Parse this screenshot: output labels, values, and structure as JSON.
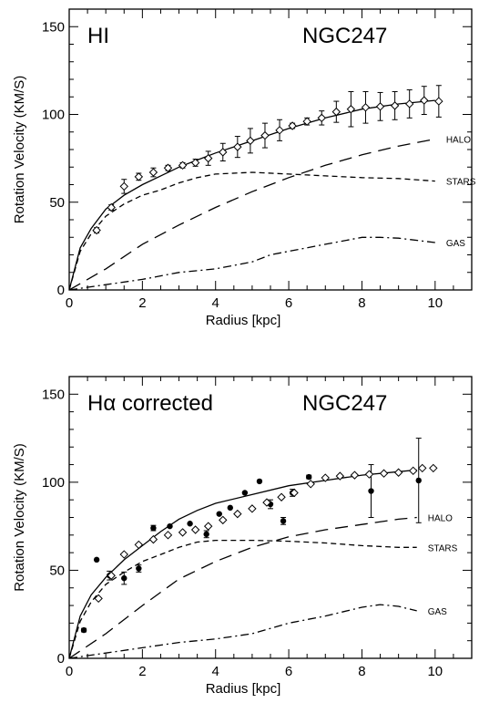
{
  "chart_data": [
    {
      "type": "scatter",
      "panel_label": "HI",
      "galaxy": "NGC247",
      "xlabel": "Radius [kpc]",
      "ylabel": "Rotation Velocity (KM/S)",
      "xlim": [
        0,
        11
      ],
      "ylim": [
        0,
        160
      ],
      "xticks": [
        0,
        2,
        4,
        6,
        8,
        10
      ],
      "yticks": [
        0,
        50,
        100,
        150
      ],
      "x_tick_labels": [
        "0",
        "2",
        "4",
        "6",
        "8",
        "10"
      ],
      "y_tick_labels": [
        "0",
        "50",
        "100",
        "150"
      ],
      "series": [
        {
          "marker": "open-diamond",
          "points": [
            {
              "x": 0.75,
              "y": 34,
              "err": 1.5
            },
            {
              "x": 1.15,
              "y": 47,
              "err": 1.5
            },
            {
              "x": 1.5,
              "y": 59,
              "err": 4
            },
            {
              "x": 1.9,
              "y": 64.5,
              "err": 2
            },
            {
              "x": 2.3,
              "y": 67,
              "err": 2.5
            },
            {
              "x": 2.7,
              "y": 69.5,
              "err": 1.5
            },
            {
              "x": 3.1,
              "y": 71,
              "err": 1.5
            },
            {
              "x": 3.45,
              "y": 72.5,
              "err": 2
            },
            {
              "x": 3.8,
              "y": 75,
              "err": 4
            },
            {
              "x": 4.2,
              "y": 78.5,
              "err": 5
            },
            {
              "x": 4.6,
              "y": 81.5,
              "err": 6
            },
            {
              "x": 4.95,
              "y": 85,
              "err": 7
            },
            {
              "x": 5.35,
              "y": 88,
              "err": 7
            },
            {
              "x": 5.75,
              "y": 91,
              "err": 6
            },
            {
              "x": 6.1,
              "y": 93.5,
              "err": 1.5
            },
            {
              "x": 6.5,
              "y": 96,
              "err": 2
            },
            {
              "x": 6.9,
              "y": 98,
              "err": 4
            },
            {
              "x": 7.3,
              "y": 101.5,
              "err": 6
            },
            {
              "x": 7.7,
              "y": 103,
              "err": 10
            },
            {
              "x": 8.1,
              "y": 104,
              "err": 9
            },
            {
              "x": 8.5,
              "y": 104.5,
              "err": 8
            },
            {
              "x": 8.9,
              "y": 105,
              "err": 8
            },
            {
              "x": 9.3,
              "y": 106,
              "err": 8
            },
            {
              "x": 9.7,
              "y": 108,
              "err": 8
            },
            {
              "x": 10.1,
              "y": 107.5,
              "err": 9
            }
          ]
        }
      ],
      "model_curves": [
        {
          "label": "",
          "style": "solid",
          "x": [
            0,
            0.3,
            0.6,
            1.0,
            1.5,
            2.0,
            2.5,
            3.0,
            3.5,
            4.0,
            5.0,
            6.0,
            7.0,
            8.0,
            9.0,
            10.0
          ],
          "y": [
            0,
            24,
            35,
            46,
            54,
            60,
            65,
            70,
            74,
            78,
            85,
            92,
            98,
            103,
            106,
            108
          ]
        },
        {
          "label": "STARS",
          "style": "short-dash",
          "x": [
            0,
            0.3,
            0.6,
            1.0,
            1.5,
            2.0,
            2.5,
            3.0,
            3.5,
            4.0,
            5.0,
            6.0,
            7.0,
            8.0,
            9.0,
            10.0
          ],
          "y": [
            0,
            22,
            32,
            42,
            49,
            54,
            57,
            61,
            64,
            66,
            67,
            66,
            65,
            64,
            63.5,
            62
          ]
        },
        {
          "label": "HALO",
          "style": "long-dash",
          "x": [
            0,
            1,
            2,
            3,
            4,
            5,
            6,
            7,
            8,
            9,
            10
          ],
          "y": [
            0,
            12,
            26,
            37,
            47,
            56,
            64,
            71,
            77,
            82,
            86
          ]
        },
        {
          "label": "GAS",
          "style": "dash-dot",
          "x": [
            0,
            1,
            2,
            3,
            4,
            5,
            5.5,
            6,
            7,
            8,
            8.5,
            9,
            10
          ],
          "y": [
            0,
            3,
            6,
            10,
            12,
            16,
            20,
            22,
            26,
            30,
            30,
            29.5,
            27
          ]
        }
      ],
      "curve_label_positions": {
        "HALO": "right",
        "STARS": "right",
        "GAS": "right"
      }
    },
    {
      "type": "scatter",
      "panel_label": "Hα corrected",
      "galaxy": "NGC247",
      "xlabel": "Radius [kpc]",
      "ylabel": "Rotation Velocity (KM/S)",
      "xlim": [
        0,
        11
      ],
      "ylim": [
        0,
        160
      ],
      "xticks": [
        0,
        2,
        4,
        6,
        8,
        10
      ],
      "yticks": [
        0,
        50,
        100,
        150
      ],
      "x_tick_labels": [
        "0",
        "2",
        "4",
        "6",
        "8",
        "10"
      ],
      "y_tick_labels": [
        "0",
        "50",
        "100",
        "150"
      ],
      "series": [
        {
          "marker": "filled-circle",
          "points": [
            {
              "x": 0.4,
              "y": 16,
              "err": 1
            },
            {
              "x": 0.75,
              "y": 56,
              "err": 0
            },
            {
              "x": 1.1,
              "y": 47,
              "err": 2.5
            },
            {
              "x": 1.5,
              "y": 45.5,
              "err": 3.5
            },
            {
              "x": 1.9,
              "y": 51,
              "err": 2
            },
            {
              "x": 2.3,
              "y": 74,
              "err": 1.5
            },
            {
              "x": 2.75,
              "y": 75,
              "err": 0
            },
            {
              "x": 3.3,
              "y": 76.5,
              "err": 0
            },
            {
              "x": 3.75,
              "y": 70.5,
              "err": 2
            },
            {
              "x": 4.1,
              "y": 82,
              "err": 0
            },
            {
              "x": 4.4,
              "y": 85.5,
              "err": 0
            },
            {
              "x": 4.8,
              "y": 94,
              "err": 0
            },
            {
              "x": 5.2,
              "y": 100.5,
              "err": 0
            },
            {
              "x": 5.5,
              "y": 87.5,
              "err": 2.5
            },
            {
              "x": 5.85,
              "y": 78,
              "err": 2
            },
            {
              "x": 6.1,
              "y": 94,
              "err": 2
            },
            {
              "x": 6.55,
              "y": 103,
              "err": 1
            },
            {
              "x": 8.25,
              "y": 95,
              "err": 15
            },
            {
              "x": 9.55,
              "y": 101,
              "err": 24
            }
          ]
        },
        {
          "marker": "open-diamond",
          "points": [
            {
              "x": 0.8,
              "y": 34
            },
            {
              "x": 1.15,
              "y": 47
            },
            {
              "x": 1.5,
              "y": 59
            },
            {
              "x": 1.9,
              "y": 64.5
            },
            {
              "x": 2.3,
              "y": 67.5
            },
            {
              "x": 2.7,
              "y": 70
            },
            {
              "x": 3.1,
              "y": 71.5
            },
            {
              "x": 3.45,
              "y": 73
            },
            {
              "x": 3.8,
              "y": 75
            },
            {
              "x": 4.2,
              "y": 78.5
            },
            {
              "x": 4.6,
              "y": 82
            },
            {
              "x": 5.0,
              "y": 85
            },
            {
              "x": 5.4,
              "y": 88.5
            },
            {
              "x": 5.8,
              "y": 91.5
            },
            {
              "x": 6.15,
              "y": 94
            },
            {
              "x": 6.6,
              "y": 99
            },
            {
              "x": 7.0,
              "y": 102.5
            },
            {
              "x": 7.4,
              "y": 103.5
            },
            {
              "x": 7.8,
              "y": 104
            },
            {
              "x": 8.2,
              "y": 104.5
            },
            {
              "x": 8.6,
              "y": 105
            },
            {
              "x": 9.0,
              "y": 105.5
            },
            {
              "x": 9.4,
              "y": 106.5
            },
            {
              "x": 9.65,
              "y": 108
            },
            {
              "x": 9.95,
              "y": 108
            }
          ]
        }
      ],
      "model_curves": [
        {
          "label": "",
          "style": "solid",
          "x": [
            0,
            0.3,
            0.6,
            1.0,
            1.5,
            2.0,
            2.5,
            3.0,
            3.5,
            4.0,
            5.0,
            6.0,
            7.0,
            8.0,
            9.0,
            9.5
          ],
          "y": [
            0,
            24,
            36,
            46,
            56,
            64,
            72,
            79,
            84,
            88,
            93,
            98,
            101,
            104,
            106,
            107
          ]
        },
        {
          "label": "STARS",
          "style": "short-dash",
          "x": [
            0,
            0.3,
            0.6,
            1.0,
            1.5,
            2.0,
            2.5,
            3.0,
            3.5,
            4.0,
            5.0,
            6.0,
            7.0,
            8.0,
            9.0,
            9.5
          ],
          "y": [
            0,
            21,
            32,
            42,
            49,
            55,
            59,
            63,
            66,
            67,
            67,
            66.5,
            65.5,
            64,
            63,
            63
          ]
        },
        {
          "label": "HALO",
          "style": "long-dash",
          "x": [
            0,
            1,
            2,
            3,
            4,
            5,
            6,
            7,
            8,
            9,
            9.5
          ],
          "y": [
            0,
            14,
            30,
            45,
            55,
            63,
            69,
            73,
            76,
            79,
            80
          ]
        },
        {
          "label": "GAS",
          "style": "dash-dot",
          "x": [
            0,
            1,
            2,
            3,
            4,
            5,
            6,
            7,
            8,
            8.5,
            9,
            9.5
          ],
          "y": [
            0,
            3,
            6,
            9,
            11,
            14,
            20,
            24,
            29,
            30.5,
            29.5,
            27
          ]
        }
      ],
      "curve_label_positions": {
        "HALO": "right",
        "STARS": "right",
        "GAS": "right"
      }
    }
  ]
}
